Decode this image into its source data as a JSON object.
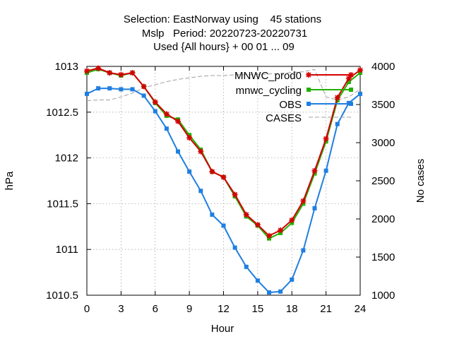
{
  "chart_data": {
    "type": "line",
    "title": [
      "Selection: EastNorway using    45 stations",
      "Mslp   Period: 20220723-20220731",
      "Used {All hours} + 00 01 ... 09"
    ],
    "xlabel": "Hour",
    "ylabel": "hPa",
    "y2label": "No cases",
    "xlim": [
      0,
      24
    ],
    "ylim": [
      1010.5,
      1013
    ],
    "y2lim": [
      1000,
      4000
    ],
    "xticks": [
      "0",
      "3",
      "6",
      "9",
      "12",
      "15",
      "18",
      "21",
      "24"
    ],
    "yticks": [
      "1010.5",
      "1011",
      "1011.5",
      "1012",
      "1012.5",
      "1013"
    ],
    "y2ticks": [
      "1000",
      "1500",
      "2000",
      "2500",
      "3000",
      "3500",
      "4000"
    ],
    "grid": true,
    "legend_position": "top-right",
    "x": [
      0,
      1,
      2,
      3,
      4,
      5,
      6,
      7,
      8,
      9,
      10,
      11,
      12,
      13,
      14,
      15,
      16,
      17,
      18,
      19,
      20,
      21,
      22,
      23,
      24
    ],
    "series": [
      {
        "name": "MNWC_prod0",
        "color": "#d40000",
        "marker": "star",
        "axis": "y",
        "values": [
          1012.95,
          1012.98,
          1012.93,
          1012.91,
          1012.93,
          1012.78,
          1012.61,
          1012.48,
          1012.4,
          1012.22,
          1012.07,
          1011.85,
          1011.79,
          1011.6,
          1011.38,
          1011.27,
          1011.15,
          1011.21,
          1011.32,
          1011.53,
          1011.86,
          1012.21,
          1012.66,
          1012.87,
          1012.96
        ]
      },
      {
        "name": "mnwc_cycling",
        "color": "#22b000",
        "marker": "square",
        "axis": "y",
        "values": [
          1012.93,
          1012.97,
          1012.93,
          1012.9,
          1012.93,
          1012.78,
          1012.6,
          1012.46,
          1012.42,
          1012.25,
          1012.09,
          1011.85,
          1011.79,
          1011.58,
          1011.36,
          1011.26,
          1011.12,
          1011.18,
          1011.29,
          1011.5,
          1011.83,
          1012.18,
          1012.63,
          1012.83,
          1012.93
        ]
      },
      {
        "name": "OBS",
        "color": "#1f7fe0",
        "marker": "square",
        "axis": "y",
        "values": [
          1012.7,
          1012.76,
          1012.76,
          1012.75,
          1012.75,
          1012.68,
          1012.51,
          1012.32,
          1012.07,
          1011.85,
          1011.64,
          1011.38,
          1011.26,
          1011.02,
          1010.81,
          1010.66,
          1010.53,
          1010.54,
          1010.67,
          1010.99,
          1011.45,
          1011.86,
          1012.37,
          1012.6,
          1012.7
        ]
      },
      {
        "name": "CASES",
        "color": "#a0a0a0",
        "marker": "none",
        "dashed": true,
        "axis": "y2",
        "values": [
          3550,
          3560,
          3560,
          3600,
          3650,
          3720,
          3760,
          3800,
          3830,
          3850,
          3870,
          3880,
          3880,
          3890,
          3890,
          3895,
          3900,
          3910,
          3920,
          3930,
          3960,
          3600,
          3560,
          3600,
          3700
        ]
      }
    ]
  }
}
